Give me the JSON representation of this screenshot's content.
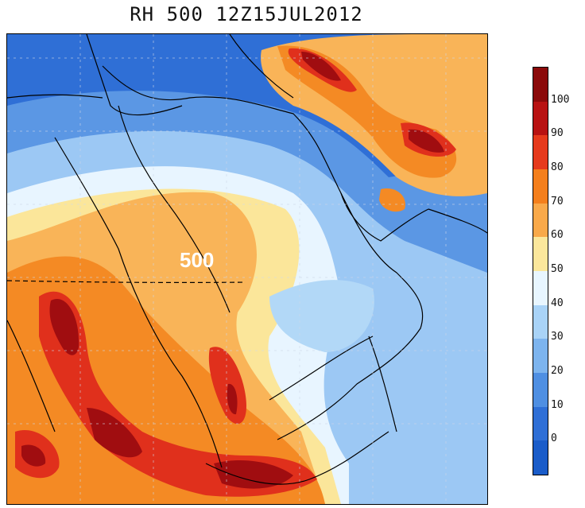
{
  "title": "RH 500 12Z15JUL2012",
  "level_label": "500",
  "colorbar": {
    "labels": [
      "100",
      "90",
      "80",
      "70",
      "60",
      "50",
      "40",
      "30",
      "20",
      "10",
      "0"
    ],
    "colors": [
      "#8b0a0a",
      "#b81212",
      "#e63a1c",
      "#f47f1c",
      "#f9a94a",
      "#fbe79c",
      "#e8f6ff",
      "#a9d3f7",
      "#7db4ee",
      "#4f8fe2",
      "#2f6fd6",
      "#1a5cc9"
    ]
  },
  "palette": {
    "dark_red": "#a00d10",
    "red": "#e0301c",
    "orange": "#f48a24",
    "light_orange": "#f9b458",
    "yellow": "#fce8a0",
    "pale": "#eef8ff",
    "light_blue": "#b2d8f7",
    "mid_blue": "#7fb3ee",
    "blue": "#4b8be0",
    "deep_blue": "#2f6fd6"
  }
}
